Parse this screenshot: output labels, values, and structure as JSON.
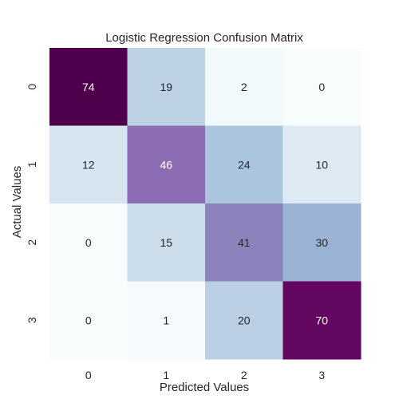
{
  "chart_data": {
    "type": "heatmap",
    "title": "Logistic Regression Confusion Matrix",
    "xlabel": "Predicted Values",
    "ylabel": "Actual Values",
    "x_categories": [
      "0",
      "1",
      "2",
      "3"
    ],
    "y_categories": [
      "0",
      "1",
      "2",
      "3"
    ],
    "values": [
      [
        74,
        19,
        2,
        0
      ],
      [
        12,
        46,
        24,
        10
      ],
      [
        0,
        15,
        41,
        30
      ],
      [
        0,
        1,
        20,
        70
      ]
    ],
    "colormap": "BuPu",
    "vmin": 0,
    "vmax": 74,
    "colorbar": false,
    "grid": false
  }
}
